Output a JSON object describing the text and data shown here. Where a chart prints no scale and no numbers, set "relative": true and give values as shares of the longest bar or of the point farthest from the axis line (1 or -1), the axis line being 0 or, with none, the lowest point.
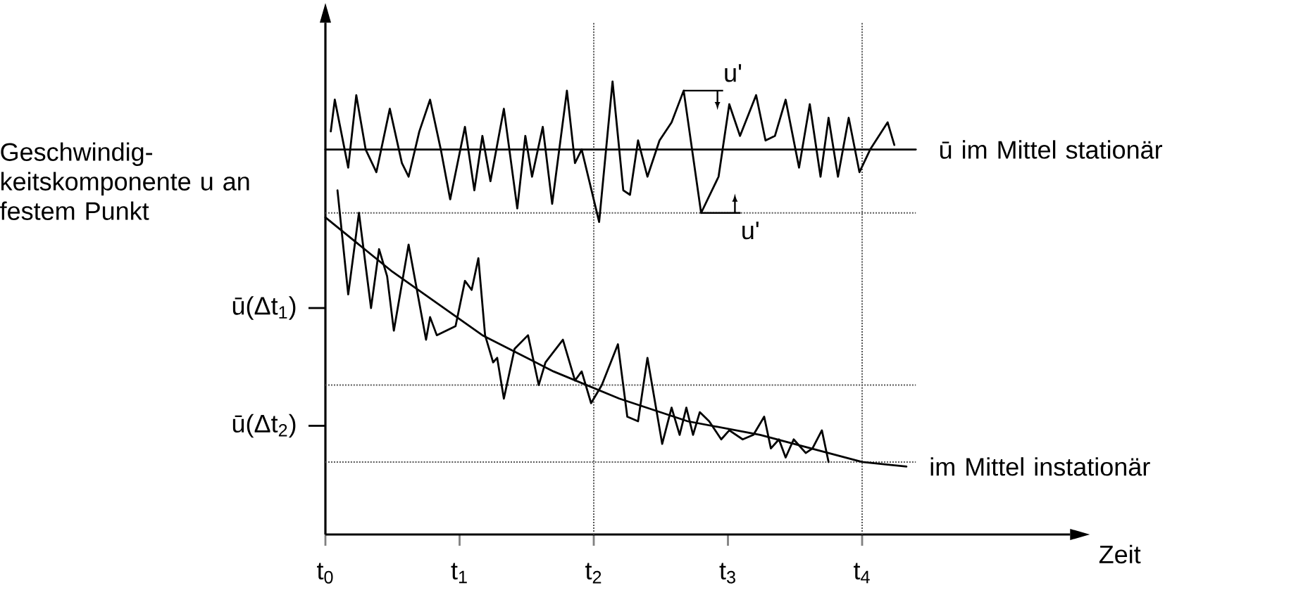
{
  "chart_data": {
    "type": "line",
    "relative": true,
    "xlabel": "Zeit",
    "ylabel": "Geschwindig-keitskomponente u an festem Punkt",
    "xlim": [
      0,
      5.55
    ],
    "xticks": [
      {
        "value": 0,
        "label": "t$_{0}$"
      },
      {
        "value": 1,
        "label": "t$_{1}$"
      },
      {
        "value": 2,
        "label": "t$_{2}$"
      },
      {
        "value": 3,
        "label": "t$_{3}$"
      },
      {
        "value": 4,
        "label": "t$_{4}$"
      }
    ],
    "series": [
      {
        "color": "#000000",
        "x": [
          0.04,
          0.07,
          0.17,
          0.23,
          0.3,
          0.38,
          0.48,
          0.57,
          0.62,
          0.7,
          0.78,
          0.86,
          0.93,
          1.04,
          1.11,
          1.17,
          1.23,
          1.33,
          1.43,
          1.49,
          1.54,
          1.62,
          1.69,
          1.8,
          1.86,
          1.91,
          2.04,
          2.14,
          2.22,
          2.27,
          2.33,
          2.4,
          2.49,
          2.58,
          2.67,
          2.8,
          2.93,
          3.01,
          3.09,
          3.21,
          3.28,
          3.35,
          3.43,
          3.53,
          3.61,
          3.69,
          3.75,
          3.82,
          3.9,
          3.98,
          4.06,
          4.19,
          4.24
        ],
        "values": [
          0.89,
          0.96,
          0.81,
          0.97,
          0.85,
          0.8,
          0.94,
          0.82,
          0.79,
          0.89,
          0.96,
          0.85,
          0.74,
          0.9,
          0.76,
          0.88,
          0.78,
          0.94,
          0.72,
          0.88,
          0.79,
          0.9,
          0.73,
          0.98,
          0.82,
          0.85,
          0.69,
          1.0,
          0.76,
          0.75,
          0.87,
          0.79,
          0.87,
          0.91,
          0.98,
          0.71,
          0.79,
          0.95,
          0.88,
          0.97,
          0.87,
          0.88,
          0.96,
          0.81,
          0.95,
          0.79,
          0.92,
          0.79,
          0.92,
          0.8,
          0.85,
          0.91,
          0.86
        ]
      },
      {
        "name": "ū im Mittel stationär",
        "color": "#000000",
        "x": [
          0,
          4.4
        ],
        "values": [
          0.85,
          0.85
        ]
      },
      {
        "color": "#000000",
        "x": [
          0.09,
          0.17,
          0.25,
          0.34,
          0.4,
          0.46,
          0.51,
          0.62,
          0.75,
          0.78,
          0.83,
          0.97,
          1.04,
          1.09,
          1.14,
          1.19,
          1.25,
          1.28,
          1.33,
          1.41,
          1.51,
          1.59,
          1.64,
          1.77,
          1.86,
          1.91,
          1.98,
          2.06,
          2.18,
          2.25,
          2.33,
          2.4,
          2.51,
          2.58,
          2.64,
          2.69,
          2.74,
          2.79,
          2.86,
          2.95,
          3.01,
          3.11,
          3.19,
          3.27,
          3.32,
          3.38,
          3.43,
          3.49,
          3.58,
          3.63,
          3.7,
          3.75
        ],
        "values": [
          0.76,
          0.53,
          0.71,
          0.5,
          0.63,
          0.57,
          0.45,
          0.64,
          0.43,
          0.48,
          0.44,
          0.46,
          0.56,
          0.54,
          0.61,
          0.44,
          0.38,
          0.39,
          0.3,
          0.41,
          0.44,
          0.33,
          0.38,
          0.43,
          0.34,
          0.36,
          0.29,
          0.33,
          0.42,
          0.26,
          0.25,
          0.39,
          0.2,
          0.28,
          0.22,
          0.28,
          0.22,
          0.27,
          0.25,
          0.21,
          0.23,
          0.21,
          0.22,
          0.26,
          0.19,
          0.21,
          0.17,
          0.21,
          0.18,
          0.19,
          0.23,
          0.16
        ]
      },
      {
        "name": "im Mittel instationär",
        "color": "#000000",
        "x": [
          0,
          0.5,
          1.17,
          1.7,
          2.19,
          2.7,
          3.24,
          4.0,
          4.33
        ],
        "values": [
          0.7,
          0.58,
          0.44,
          0.36,
          0.3,
          0.25,
          0.22,
          0.16,
          0.15
        ]
      }
    ],
    "ref_lines": [
      {
        "axis": "x",
        "value": 2,
        "line_style": "dotted"
      },
      {
        "axis": "x",
        "value": 4,
        "line_style": "dotted"
      },
      {
        "axis": "y",
        "value": 0.71,
        "line_style": "dotted"
      },
      {
        "axis": "y",
        "value": 0.33,
        "line_style": "dotted"
      },
      {
        "axis": "y",
        "value": 0.16,
        "line_style": "dotted"
      }
    ],
    "annotations": [
      "ū(Δt$_{1}$)",
      "ū(Δt$_{2}$)",
      {
        "text": "u'",
        "x": 2.67,
        "y": 0.98
      },
      {
        "text": "u'",
        "x": 2.8,
        "y": 0.71
      }
    ]
  }
}
